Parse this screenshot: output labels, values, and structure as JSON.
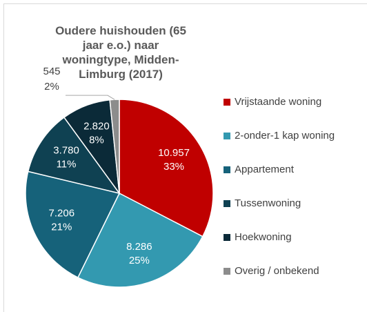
{
  "chart_data": {
    "type": "pie",
    "title": "Oudere huishouden (65 jaar e.o.) naar woningtype, Midden-Limburg (2017)",
    "categories": [
      "Vrijstaande woning",
      "2-onder-1 kap woning",
      "Appartement",
      "Tussenwoning",
      "Hoekwoning",
      "Overig / onbekend"
    ],
    "values": [
      10957,
      8286,
      7206,
      3780,
      2820,
      545
    ],
    "value_labels": [
      "10.957",
      "8.286",
      "7.206",
      "3.780",
      "2.820",
      "545"
    ],
    "percent_labels": [
      "33%",
      "25%",
      "21%",
      "11%",
      "8%",
      "2%"
    ],
    "colors": [
      "#c00000",
      "#3399b0",
      "#16627a",
      "#0f4152",
      "#0b2a38",
      "#8c8c8c"
    ],
    "legend": "right"
  }
}
